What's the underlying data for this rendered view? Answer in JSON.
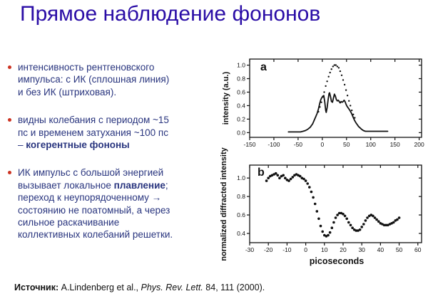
{
  "slide": {
    "title": "Прямое наблюдение фононов",
    "title_color": "#2a0da6",
    "text_color": "#28347e",
    "bullet_color": "#cc3322",
    "plot_ink_color": "#111111"
  },
  "bullets": [
    {
      "lines": [
        [
          {
            "t": "интенсивность рентгеновского",
            "b": false
          }
        ],
        [
          {
            "t": "импульса: с ИК (сплошная линия)",
            "b": false
          }
        ],
        [
          {
            "t": "и без ИК (штриховая).",
            "b": false
          }
        ]
      ]
    },
    {
      "lines": [
        [
          {
            "t": "видны колебания с периодом ~15",
            "b": false
          }
        ],
        [
          {
            "t": "пс и временем затухания ~100 пс",
            "b": false
          }
        ],
        [
          {
            "t": "– ",
            "b": false
          },
          {
            "t": "когерентные фононы",
            "b": true
          }
        ]
      ]
    },
    {
      "lines": [
        [
          {
            "t": "ИК импульс с большой энергией",
            "b": false
          }
        ],
        [
          {
            "t": "вызывает локальное ",
            "b": false
          },
          {
            "t": "плавление",
            "b": true
          },
          {
            "t": ";",
            "b": false
          }
        ],
        [
          {
            "t": "переход к неупорядоченному →",
            "b": false
          }
        ],
        [
          {
            "t": "состоянию не поатомный, а через",
            "b": false
          }
        ],
        [
          {
            "t": "сильное раскачивание",
            "b": false
          }
        ],
        [
          {
            "t": "коллективных колебаний решетки.",
            "b": false
          }
        ]
      ]
    }
  ],
  "footer": {
    "label": "Источник:",
    "pre": " A.Lindenberg et al., ",
    "journal": "Phys. Rev. Lett.",
    "post": " 84, 111 (2000)."
  },
  "chart_data": [
    {
      "type": "line",
      "panel": "a",
      "title": "",
      "xlabel": "",
      "ylabel": "intensity (a.u.)",
      "xlim": [
        -150,
        205
      ],
      "ylim": [
        -0.07,
        1.09
      ],
      "xticks": [
        -150,
        -100,
        -50,
        0,
        50,
        100,
        150,
        200
      ],
      "yticks": [
        0.0,
        0.2,
        0.4,
        0.6,
        0.8,
        1.0
      ],
      "ytick_labels": [
        "0.0",
        "0.2",
        "0.4",
        "0.6",
        "0.8",
        "1.0"
      ],
      "grid": false,
      "legend": "none",
      "series": [
        {
          "name": "x-ray intensity with IR (solid line)",
          "marker": "line",
          "points": [
            [
              -70,
              0.01
            ],
            [
              -60,
              0.01
            ],
            [
              -50,
              0.01
            ],
            [
              -45,
              0.01
            ],
            [
              -40,
              0.02
            ],
            [
              -35,
              0.03
            ],
            [
              -30,
              0.05
            ],
            [
              -25,
              0.08
            ],
            [
              -20,
              0.13
            ],
            [
              -15,
              0.21
            ],
            [
              -11,
              0.28
            ],
            [
              -8,
              0.35
            ],
            [
              -5,
              0.44
            ],
            [
              -3,
              0.49
            ],
            [
              -1,
              0.52
            ],
            [
              1,
              0.54
            ],
            [
              3,
              0.55
            ],
            [
              5,
              0.46
            ],
            [
              7,
              0.33
            ],
            [
              8,
              0.3
            ],
            [
              10,
              0.37
            ],
            [
              12,
              0.49
            ],
            [
              14,
              0.58
            ],
            [
              15,
              0.59
            ],
            [
              17,
              0.53
            ],
            [
              19,
              0.46
            ],
            [
              21,
              0.45
            ],
            [
              23,
              0.51
            ],
            [
              25,
              0.57
            ],
            [
              27,
              0.54
            ],
            [
              29,
              0.49
            ],
            [
              31,
              0.47
            ],
            [
              33,
              0.48
            ],
            [
              35,
              0.46
            ],
            [
              37,
              0.44
            ],
            [
              39,
              0.46
            ],
            [
              41,
              0.45
            ],
            [
              43,
              0.46
            ],
            [
              45,
              0.48
            ],
            [
              47,
              0.46
            ],
            [
              49,
              0.42
            ],
            [
              51,
              0.39
            ],
            [
              54,
              0.36
            ],
            [
              57,
              0.33
            ],
            [
              60,
              0.29
            ],
            [
              63,
              0.24
            ],
            [
              66,
              0.19
            ],
            [
              69,
              0.15
            ],
            [
              72,
              0.12
            ],
            [
              75,
              0.09
            ],
            [
              78,
              0.07
            ],
            [
              81,
              0.05
            ],
            [
              85,
              0.03
            ],
            [
              89,
              0.02
            ],
            [
              93,
              0.02
            ],
            [
              98,
              0.02
            ],
            [
              105,
              0.02
            ],
            [
              112,
              0.02
            ],
            [
              120,
              0.02
            ],
            [
              128,
              0.02
            ],
            [
              135,
              0.02
            ]
          ]
        },
        {
          "name": "x-ray intensity without IR (dotted line)",
          "marker": "dots",
          "points": [
            [
              -8,
              0.31
            ],
            [
              -5,
              0.38
            ],
            [
              -2,
              0.45
            ],
            [
              1,
              0.53
            ],
            [
              4,
              0.6
            ],
            [
              7,
              0.69
            ],
            [
              10,
              0.76
            ],
            [
              13,
              0.83
            ],
            [
              16,
              0.89
            ],
            [
              19,
              0.94
            ],
            [
              22,
              0.98
            ],
            [
              25,
              1.0
            ],
            [
              28,
              1.0
            ],
            [
              31,
              0.98
            ],
            [
              34,
              0.96
            ],
            [
              37,
              0.91
            ],
            [
              40,
              0.85
            ],
            [
              43,
              0.78
            ],
            [
              46,
              0.71
            ],
            [
              49,
              0.63
            ],
            [
              52,
              0.55
            ],
            [
              55,
              0.47
            ],
            [
              58,
              0.4
            ],
            [
              61,
              0.33
            ],
            [
              64,
              0.27
            ],
            [
              67,
              0.22
            ]
          ]
        }
      ]
    },
    {
      "type": "scatter",
      "panel": "b",
      "title": "",
      "xlabel": "picoseconds",
      "ylabel": "normalized diffracted intensity",
      "xlim": [
        -30,
        62
      ],
      "ylim": [
        0.3,
        1.14
      ],
      "xticks": [
        -30,
        -20,
        -10,
        0,
        10,
        20,
        30,
        40,
        50,
        60
      ],
      "yticks": [
        0.4,
        0.6,
        0.8,
        1.0
      ],
      "ytick_labels": [
        "0.4",
        "0.6",
        "0.8",
        "1.0"
      ],
      "grid": false,
      "legend": "none",
      "series": [
        {
          "name": "normalized diffracted intensity",
          "marker": "dots",
          "points": [
            [
              -21,
              0.97
            ],
            [
              -20,
              1.0
            ],
            [
              -19,
              1.02
            ],
            [
              -18,
              1.03
            ],
            [
              -17,
              1.04
            ],
            [
              -16,
              1.05
            ],
            [
              -15,
              1.03
            ],
            [
              -14,
              1.0
            ],
            [
              -13,
              1.02
            ],
            [
              -12,
              1.03
            ],
            [
              -11,
              1.0
            ],
            [
              -10,
              0.98
            ],
            [
              -9,
              0.97
            ],
            [
              -8,
              0.99
            ],
            [
              -7,
              1.01
            ],
            [
              -6,
              1.03
            ],
            [
              -5,
              1.04
            ],
            [
              -4,
              1.03
            ],
            [
              -3,
              1.02
            ],
            [
              -2,
              1.0
            ],
            [
              -1,
              0.99
            ],
            [
              0,
              0.97
            ],
            [
              1,
              0.94
            ],
            [
              2,
              0.9
            ],
            [
              3,
              0.85
            ],
            [
              4,
              0.79
            ],
            [
              5,
              0.72
            ],
            [
              6,
              0.64
            ],
            [
              7,
              0.56
            ],
            [
              8,
              0.48
            ],
            [
              9,
              0.42
            ],
            [
              10,
              0.38
            ],
            [
              11,
              0.37
            ],
            [
              12,
              0.38
            ],
            [
              13,
              0.41
            ],
            [
              14,
              0.46
            ],
            [
              15,
              0.52
            ],
            [
              16,
              0.57
            ],
            [
              17,
              0.6
            ],
            [
              18,
              0.62
            ],
            [
              19,
              0.62
            ],
            [
              20,
              0.61
            ],
            [
              21,
              0.59
            ],
            [
              22,
              0.56
            ],
            [
              23,
              0.52
            ],
            [
              24,
              0.49
            ],
            [
              25,
              0.46
            ],
            [
              26,
              0.44
            ],
            [
              27,
              0.43
            ],
            [
              28,
              0.43
            ],
            [
              29,
              0.44
            ],
            [
              30,
              0.47
            ],
            [
              31,
              0.5
            ],
            [
              32,
              0.54
            ],
            [
              33,
              0.57
            ],
            [
              34,
              0.59
            ],
            [
              35,
              0.6
            ],
            [
              36,
              0.59
            ],
            [
              37,
              0.57
            ],
            [
              38,
              0.55
            ],
            [
              39,
              0.53
            ],
            [
              40,
              0.51
            ],
            [
              41,
              0.5
            ],
            [
              42,
              0.49
            ],
            [
              43,
              0.49
            ],
            [
              44,
              0.49
            ],
            [
              45,
              0.5
            ],
            [
              46,
              0.51
            ],
            [
              47,
              0.52
            ],
            [
              48,
              0.54
            ],
            [
              49,
              0.55
            ],
            [
              50,
              0.57
            ]
          ]
        }
      ]
    }
  ]
}
